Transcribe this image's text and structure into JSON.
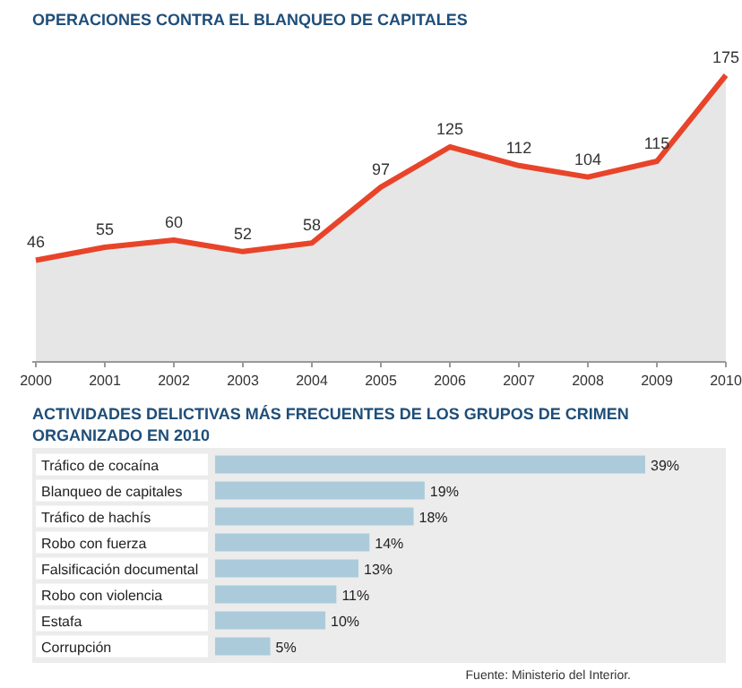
{
  "chart_data": [
    {
      "type": "area",
      "title": "OPERACIONES CONTRA EL BLANQUEO DE CAPITALES",
      "categories": [
        "2000",
        "2001",
        "2002",
        "2003",
        "2004",
        "2005",
        "2006",
        "2007",
        "2008",
        "2009",
        "2010"
      ],
      "data_labels": true,
      "series": [
        {
          "color": "#e8442a",
          "values": [
            46,
            55,
            60,
            52,
            58,
            97,
            125,
            112,
            104,
            115,
            175
          ]
        }
      ]
    },
    {
      "type": "bar",
      "orientation": "horizontal",
      "title": "ACTIVIDADES DELICTIVAS MÁS FRECUENTES DE LOS GRUPOS DE CRIMEN ORGANIZADO EN 2010",
      "categories": [
        "Tráfico de cocaína",
        "Blanqueo de capitales",
        "Tráfico de hachís",
        "Robo con fuerza",
        "Falsificación documental",
        "Robo con violencia",
        "Estafa",
        "Corrupción"
      ],
      "values": [
        39,
        19,
        18,
        14,
        13,
        11,
        10,
        5
      ],
      "color": "#abcbdb",
      "value_labels": [
        "39%",
        "19%",
        "18%",
        "14%",
        "13%",
        "11%",
        "10%",
        "5%"
      ],
      "annotations": [
        "Fuente: Ministerio del Interior."
      ]
    }
  ]
}
